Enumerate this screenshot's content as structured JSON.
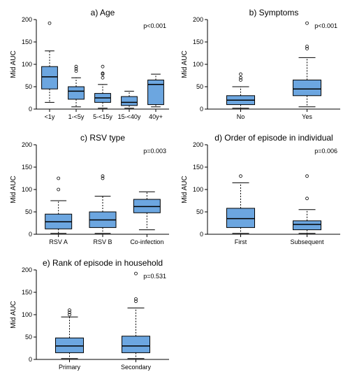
{
  "global": {
    "ylim": [
      0,
      200
    ],
    "ytick_step": 50,
    "ylabel": "Mid AUC",
    "axis_color": "#000000",
    "box_fill": "#6ca6e0",
    "box_stroke": "#000000",
    "whisker_color": "#000000",
    "outlier_color": "#000000",
    "title_fontsize": 12,
    "label_fontsize": 10,
    "tick_fontsize": 9,
    "bg": "#ffffff"
  },
  "panels": {
    "a": {
      "title": "a) Age",
      "pvalue": "p<0.001",
      "categories": [
        "<1y",
        "1-<5y",
        "5-<15y",
        "15-<40y",
        "40y+"
      ],
      "boxes": [
        {
          "min": 15,
          "q1": 45,
          "med": 72,
          "q3": 95,
          "max": 130,
          "outliers": [
            192
          ]
        },
        {
          "min": 5,
          "q1": 22,
          "med": 40,
          "q3": 50,
          "max": 70,
          "outliers": [
            85,
            90,
            95
          ]
        },
        {
          "min": 2,
          "q1": 15,
          "med": 25,
          "q3": 35,
          "max": 55,
          "outliers": [
            70,
            78,
            80,
            95
          ]
        },
        {
          "min": 2,
          "q1": 8,
          "med": 15,
          "q3": 28,
          "max": 40,
          "outliers": []
        },
        {
          "min": 5,
          "q1": 10,
          "med": 55,
          "q3": 65,
          "max": 78,
          "outliers": []
        }
      ]
    },
    "b": {
      "title": "b) Symptoms",
      "pvalue": "p<0.001",
      "categories": [
        "No",
        "Yes"
      ],
      "boxes": [
        {
          "min": 2,
          "q1": 10,
          "med": 20,
          "q3": 30,
          "max": 50,
          "outliers": [
            65,
            70,
            78
          ]
        },
        {
          "min": 5,
          "q1": 30,
          "med": 45,
          "q3": 65,
          "max": 115,
          "outliers": [
            135,
            140,
            192
          ]
        }
      ]
    },
    "c": {
      "title": "c) RSV type",
      "pvalue": "p=0.003",
      "categories": [
        "RSV A",
        "RSV B",
        "Co-infection"
      ],
      "boxes": [
        {
          "min": 2,
          "q1": 12,
          "med": 28,
          "q3": 45,
          "max": 75,
          "outliers": [
            100,
            125
          ]
        },
        {
          "min": 2,
          "q1": 15,
          "med": 32,
          "q3": 50,
          "max": 85,
          "outliers": [
            125,
            130
          ]
        },
        {
          "min": 10,
          "q1": 48,
          "med": 62,
          "q3": 78,
          "max": 95,
          "outliers": []
        }
      ]
    },
    "d": {
      "title": "d) Order of episode in individual",
      "pvalue": "p=0.006",
      "categories": [
        "First",
        "Subsequent"
      ],
      "boxes": [
        {
          "min": 2,
          "q1": 15,
          "med": 35,
          "q3": 58,
          "max": 115,
          "outliers": [
            130
          ]
        },
        {
          "min": 2,
          "q1": 10,
          "med": 22,
          "q3": 30,
          "max": 55,
          "outliers": [
            80,
            130
          ]
        }
      ]
    },
    "e": {
      "title": "e) Rank of episode in household",
      "pvalue": "p=0.531",
      "categories": [
        "Primary",
        "Secondary"
      ],
      "boxes": [
        {
          "min": 2,
          "q1": 15,
          "med": 30,
          "q3": 48,
          "max": 95,
          "outliers": [
            100,
            105,
            110
          ]
        },
        {
          "min": 2,
          "q1": 15,
          "med": 30,
          "q3": 52,
          "max": 115,
          "outliers": [
            130,
            135,
            192
          ]
        }
      ]
    }
  }
}
